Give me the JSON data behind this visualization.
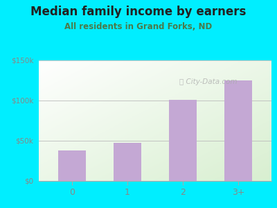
{
  "title": "Median family income by earners",
  "subtitle": "All residents in Grand Forks, ND",
  "categories": [
    "0",
    "1",
    "2",
    "3+"
  ],
  "values": [
    38000,
    47000,
    101000,
    125000
  ],
  "bar_color": "#c4a8d4",
  "ylim": [
    0,
    150000
  ],
  "yticks": [
    0,
    50000,
    100000,
    150000
  ],
  "ytick_labels": [
    "$0",
    "$50k",
    "$100k",
    "$150k"
  ],
  "outer_bg": "#00eeff",
  "plot_bg_topleft": "#ffffff",
  "plot_bg_bottomright": "#d8efd0",
  "title_color": "#222222",
  "subtitle_color": "#4a7a4a",
  "tick_color": "#888888",
  "watermark": "ⓘ City-Data.com",
  "title_fontsize": 12,
  "subtitle_fontsize": 8.5
}
